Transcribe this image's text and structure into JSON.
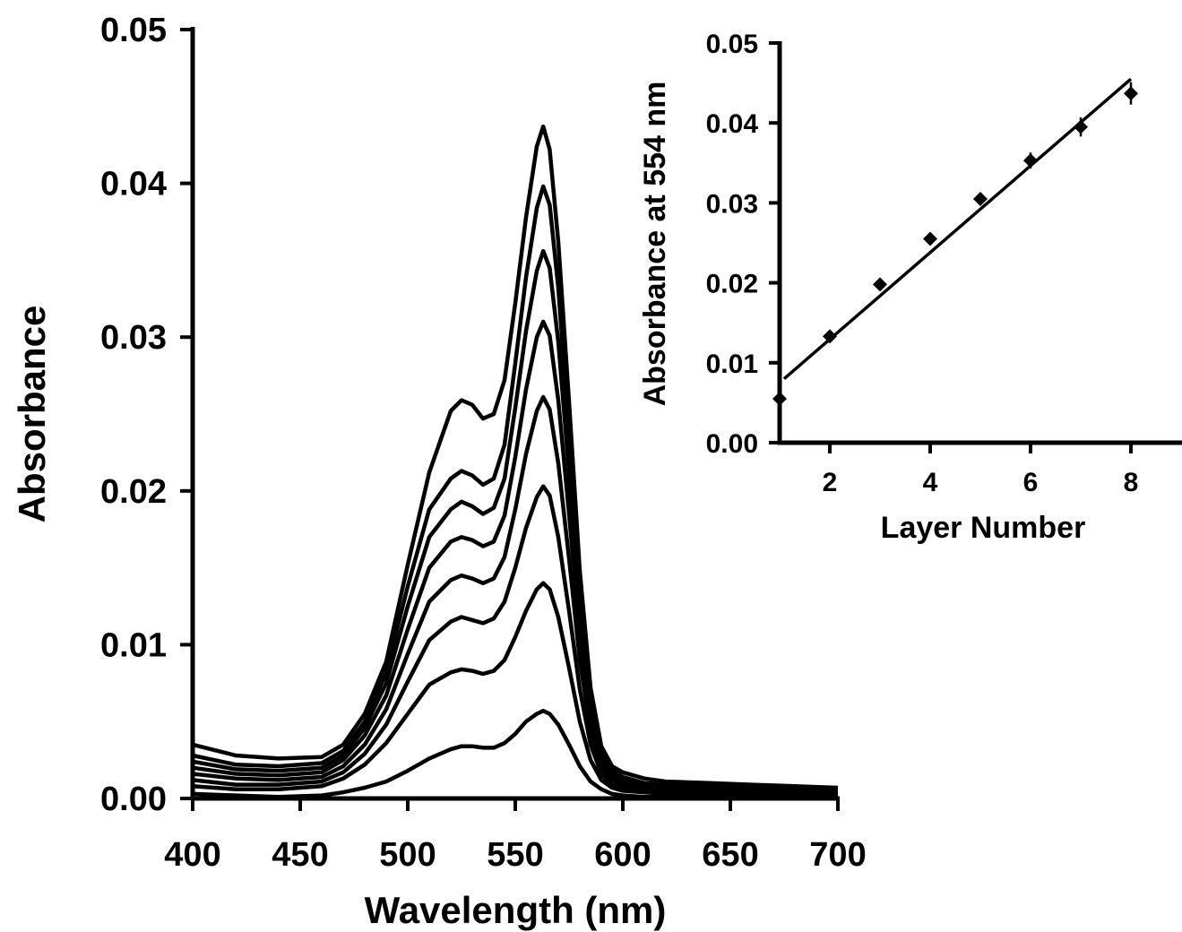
{
  "chart_data": [
    {
      "type": "line",
      "xlabel": "Wavelength (nm)",
      "ylabel": "Absorbance",
      "xlim": [
        400,
        700
      ],
      "ylim": [
        0,
        0.05
      ],
      "x_ticks": [
        "400",
        "450",
        "500",
        "550",
        "600",
        "650",
        "700"
      ],
      "y_ticks": [
        "0.00",
        "0.01",
        "0.02",
        "0.03",
        "0.04",
        "0.05"
      ],
      "grid": false,
      "legend": "none",
      "x": [
        400,
        420,
        440,
        460,
        470,
        480,
        490,
        500,
        510,
        520,
        525,
        530,
        535,
        540,
        545,
        550,
        555,
        560,
        563,
        566,
        570,
        575,
        580,
        585,
        590,
        595,
        600,
        610,
        620,
        640,
        660,
        680,
        700
      ],
      "series": [
        {
          "values": [
            0.0003,
            0.0002,
            0.0001,
            0.0002,
            0.0004,
            0.0007,
            0.0011,
            0.0018,
            0.0026,
            0.0032,
            0.0034,
            0.0034,
            0.0033,
            0.0033,
            0.0036,
            0.0042,
            0.005,
            0.0055,
            0.0057,
            0.0055,
            0.0048,
            0.0035,
            0.0021,
            0.0011,
            0.0006,
            0.0003,
            0.0002,
            0.0001,
            0.0001,
            0.0001,
            0.0001,
            0.0001,
            0.0001
          ]
        },
        {
          "values": [
            0.0008,
            0.0006,
            0.0006,
            0.0008,
            0.0013,
            0.0022,
            0.0036,
            0.0055,
            0.0074,
            0.0082,
            0.0084,
            0.0083,
            0.0081,
            0.0083,
            0.009,
            0.0105,
            0.0122,
            0.0136,
            0.014,
            0.0136,
            0.0118,
            0.0085,
            0.005,
            0.0025,
            0.0012,
            0.0007,
            0.0005,
            0.0004,
            0.0003,
            0.0003,
            0.0003,
            0.0002,
            0.0002
          ]
        },
        {
          "values": [
            0.0012,
            0.0009,
            0.0009,
            0.0011,
            0.0017,
            0.0029,
            0.0048,
            0.0076,
            0.0103,
            0.0115,
            0.0118,
            0.0116,
            0.0114,
            0.0117,
            0.0128,
            0.015,
            0.0176,
            0.0196,
            0.0203,
            0.0197,
            0.017,
            0.0122,
            0.0071,
            0.0035,
            0.0016,
            0.0009,
            0.0007,
            0.0005,
            0.0004,
            0.0004,
            0.0004,
            0.0003,
            0.0003
          ]
        },
        {
          "values": [
            0.0016,
            0.0013,
            0.0012,
            0.0014,
            0.0021,
            0.0035,
            0.0058,
            0.0094,
            0.0128,
            0.0142,
            0.0145,
            0.0143,
            0.014,
            0.0143,
            0.0157,
            0.0188,
            0.0224,
            0.0252,
            0.0261,
            0.0253,
            0.0218,
            0.0156,
            0.009,
            0.0044,
            0.002,
            0.0012,
            0.0009,
            0.0007,
            0.0006,
            0.0005,
            0.0005,
            0.0004,
            0.0004
          ]
        },
        {
          "values": [
            0.002,
            0.0016,
            0.0015,
            0.0017,
            0.0025,
            0.0041,
            0.0067,
            0.011,
            0.015,
            0.0167,
            0.017,
            0.0168,
            0.0164,
            0.0167,
            0.0184,
            0.0222,
            0.0266,
            0.03,
            0.031,
            0.0301,
            0.0259,
            0.0185,
            0.0107,
            0.0052,
            0.0024,
            0.0014,
            0.0011,
            0.0008,
            0.0007,
            0.0006,
            0.0005,
            0.0005,
            0.0005
          ]
        },
        {
          "values": [
            0.0024,
            0.0019,
            0.0018,
            0.002,
            0.0028,
            0.0046,
            0.0075,
            0.0125,
            0.017,
            0.0188,
            0.0193,
            0.019,
            0.0185,
            0.0189,
            0.0208,
            0.0254,
            0.0304,
            0.0343,
            0.0356,
            0.0345,
            0.0297,
            0.0212,
            0.0122,
            0.0059,
            0.0027,
            0.0016,
            0.0012,
            0.0009,
            0.0008,
            0.0007,
            0.0006,
            0.0006,
            0.0006
          ]
        },
        {
          "values": [
            0.0028,
            0.0022,
            0.0021,
            0.0023,
            0.0031,
            0.005,
            0.0082,
            0.0138,
            0.0188,
            0.0208,
            0.0213,
            0.021,
            0.0204,
            0.0208,
            0.023,
            0.0283,
            0.0339,
            0.0384,
            0.0398,
            0.0386,
            0.0332,
            0.0237,
            0.0136,
            0.0066,
            0.003,
            0.0018,
            0.0014,
            0.001,
            0.0009,
            0.0008,
            0.0007,
            0.0007,
            0.0006
          ]
        },
        {
          "values": [
            0.0035,
            0.0028,
            0.0026,
            0.0027,
            0.0035,
            0.0055,
            0.0089,
            0.0152,
            0.0212,
            0.0252,
            0.0259,
            0.0256,
            0.0247,
            0.025,
            0.0272,
            0.0322,
            0.0378,
            0.0424,
            0.0437,
            0.0422,
            0.0362,
            0.0258,
            0.0148,
            0.0072,
            0.0034,
            0.0021,
            0.0017,
            0.0013,
            0.0011,
            0.001,
            0.0009,
            0.0008,
            0.0007
          ]
        }
      ]
    },
    {
      "type": "scatter",
      "xlabel": "Layer Number",
      "ylabel": "Absorbance at 554 nm",
      "xlim": [
        1,
        9
      ],
      "ylim": [
        0,
        0.05
      ],
      "x_ticks": [
        "2",
        "4",
        "6",
        "8"
      ],
      "y_ticks": [
        "0.00",
        "0.01",
        "0.02",
        "0.03",
        "0.04",
        "0.05"
      ],
      "grid": false,
      "legend": "none",
      "series": [
        {
          "x": [
            1,
            2,
            3,
            4,
            5,
            6,
            7,
            8
          ],
          "y": [
            0.0055,
            0.0133,
            0.0198,
            0.0255,
            0.0305,
            0.0353,
            0.0395,
            0.0437
          ],
          "error": [
            0.0004,
            0.0004,
            0.0005,
            0.0006,
            0.0006,
            0.001,
            0.0012,
            0.0014
          ]
        }
      ],
      "fit_line": {
        "x": [
          1,
          8
        ],
        "y": [
          0.008,
          0.0455
        ]
      }
    }
  ]
}
